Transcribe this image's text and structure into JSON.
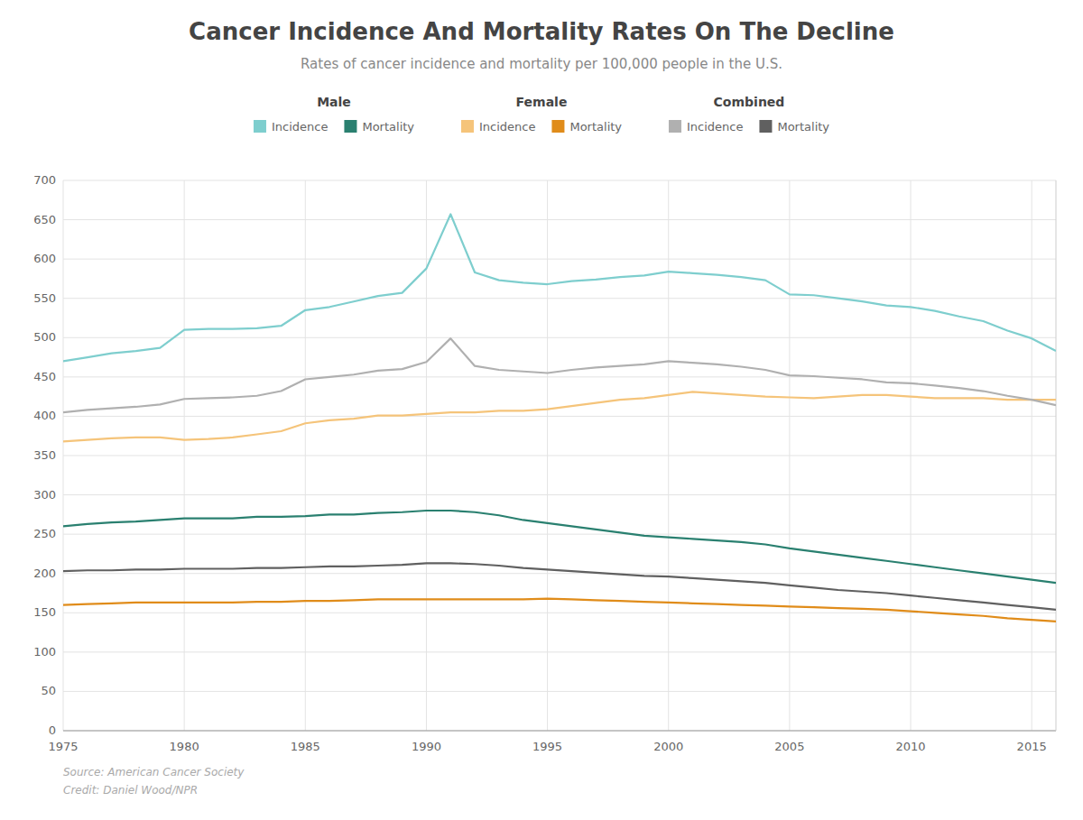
{
  "chart_data": {
    "type": "line",
    "title": "Cancer Incidence And Mortality Rates On The Decline",
    "subtitle": "Rates of cancer incidence and mortality per 100,000 people in the U.S.",
    "source": "Source: American Cancer Society",
    "credit": "Credit: Daniel Wood/NPR",
    "x": [
      1975,
      1976,
      1977,
      1978,
      1979,
      1980,
      1981,
      1982,
      1983,
      1984,
      1985,
      1986,
      1987,
      1988,
      1989,
      1990,
      1991,
      1992,
      1993,
      1994,
      1995,
      1996,
      1997,
      1998,
      1999,
      2000,
      2001,
      2002,
      2003,
      2004,
      2005,
      2006,
      2007,
      2008,
      2009,
      2010,
      2011,
      2012,
      2013,
      2014,
      2015,
      2016
    ],
    "series": [
      {
        "name": "Incidence",
        "group": "Male",
        "color": "#7ecece",
        "values": [
          470,
          475,
          480,
          483,
          487,
          510,
          511,
          511,
          512,
          515,
          535,
          539,
          546,
          553,
          557,
          588,
          657,
          583,
          573,
          570,
          568,
          572,
          574,
          577,
          579,
          584,
          582,
          580,
          577,
          573,
          555,
          554,
          550,
          546,
          541,
          539,
          534,
          527,
          521,
          509,
          499,
          483
        ]
      },
      {
        "name": "Mortality",
        "group": "Male",
        "color": "#2a8070",
        "values": [
          260,
          263,
          265,
          266,
          268,
          270,
          270,
          270,
          272,
          272,
          273,
          275,
          275,
          277,
          278,
          280,
          280,
          278,
          274,
          268,
          264,
          260,
          256,
          252,
          248,
          246,
          244,
          242,
          240,
          237,
          232,
          228,
          224,
          220,
          216,
          212,
          208,
          204,
          200,
          196,
          192,
          188
        ]
      },
      {
        "name": "Incidence",
        "group": "Female",
        "color": "#f5c47a",
        "values": [
          368,
          370,
          372,
          373,
          373,
          370,
          371,
          373,
          377,
          381,
          391,
          395,
          397,
          401,
          401,
          403,
          405,
          405,
          407,
          407,
          409,
          413,
          417,
          421,
          423,
          427,
          431,
          429,
          427,
          425,
          424,
          423,
          425,
          427,
          427,
          425,
          423,
          423,
          423,
          421,
          421,
          421
        ]
      },
      {
        "name": "Mortality",
        "group": "Female",
        "color": "#e08c1a",
        "values": [
          160,
          161,
          162,
          163,
          163,
          163,
          163,
          163,
          164,
          164,
          165,
          165,
          166,
          167,
          167,
          167,
          167,
          167,
          167,
          167,
          168,
          167,
          166,
          165,
          164,
          163,
          162,
          161,
          160,
          159,
          158,
          157,
          156,
          155,
          154,
          152,
          150,
          148,
          146,
          143,
          141,
          139
        ]
      },
      {
        "name": "Incidence",
        "group": "Combined",
        "color": "#b0b0b0",
        "values": [
          405,
          408,
          410,
          412,
          415,
          422,
          423,
          424,
          426,
          432,
          447,
          450,
          453,
          458,
          460,
          469,
          499,
          464,
          459,
          457,
          455,
          459,
          462,
          464,
          466,
          470,
          468,
          466,
          463,
          459,
          452,
          451,
          449,
          447,
          443,
          442,
          439,
          436,
          432,
          426,
          421,
          414
        ]
      },
      {
        "name": "Mortality",
        "group": "Combined",
        "color": "#606060",
        "values": [
          203,
          204,
          204,
          205,
          205,
          206,
          206,
          206,
          207,
          207,
          208,
          209,
          209,
          210,
          211,
          213,
          213,
          212,
          210,
          207,
          205,
          203,
          201,
          199,
          197,
          196,
          194,
          192,
          190,
          188,
          185,
          182,
          179,
          177,
          175,
          172,
          169,
          166,
          163,
          160,
          157,
          154
        ]
      }
    ],
    "xlim": [
      1975,
      2016
    ],
    "xticks": [
      1975,
      1980,
      1985,
      1990,
      1995,
      2000,
      2005,
      2010,
      2015
    ],
    "ylim": [
      0,
      700
    ],
    "yticks": [
      0,
      50,
      100,
      150,
      200,
      250,
      300,
      350,
      400,
      450,
      500,
      550,
      600,
      650,
      700
    ],
    "grid": true
  }
}
